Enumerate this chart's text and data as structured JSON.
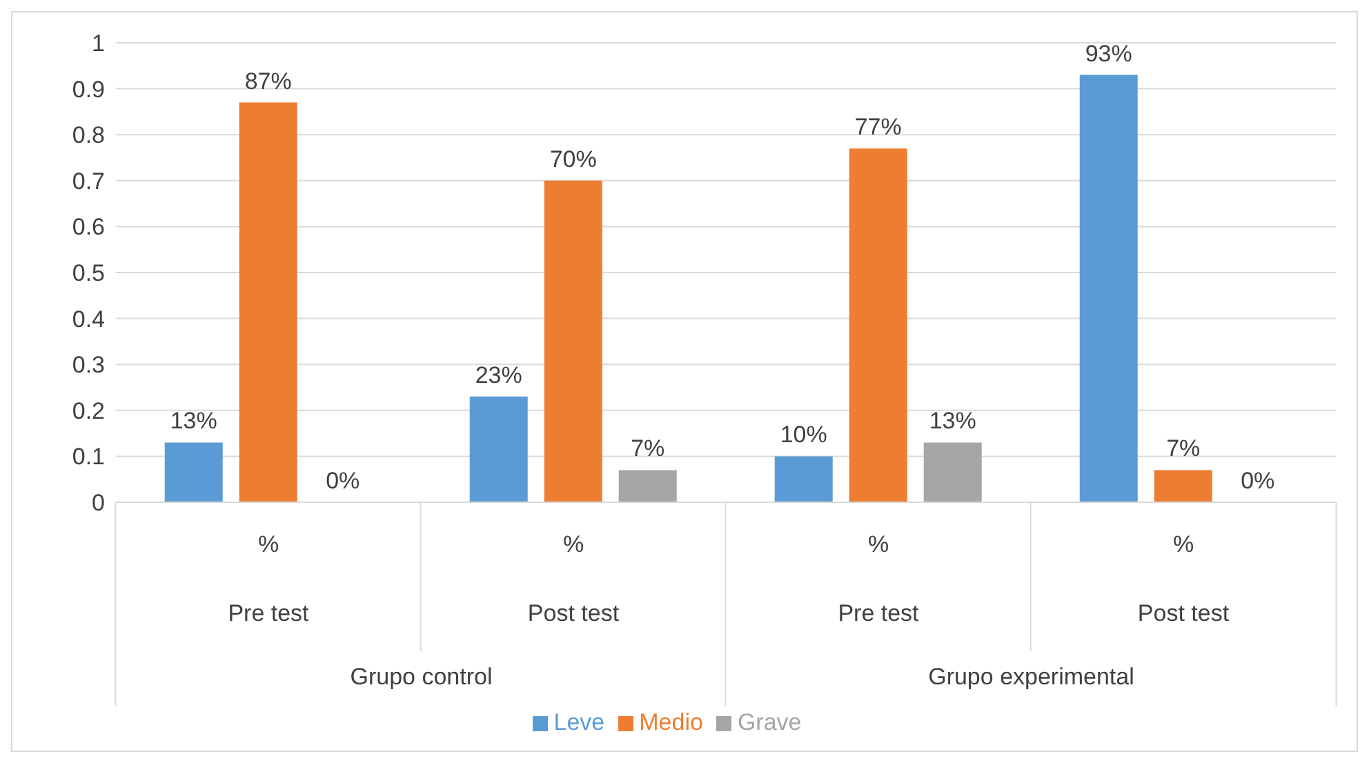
{
  "chart_data": {
    "type": "bar",
    "categories": [
      "%",
      "%",
      "%",
      "%"
    ],
    "series": [
      {
        "name": "Leve",
        "color": "#5b9bd5",
        "values": [
          0.13,
          0.23,
          0.1,
          0.93
        ],
        "value_labels": [
          "13%",
          "23%",
          "10%",
          "93%"
        ]
      },
      {
        "name": "Medio",
        "color": "#ed7d31",
        "values": [
          0.87,
          0.7,
          0.77,
          0.07
        ],
        "value_labels": [
          "87%",
          "70%",
          "77%",
          "7%"
        ]
      },
      {
        "name": "Grave",
        "color": "#a5a5a5",
        "values": [
          0,
          0.07,
          0.13,
          0
        ],
        "value_labels": [
          "0%",
          "7%",
          "13%",
          "0%"
        ]
      }
    ],
    "annotations": [
      "Pre test",
      "Post test",
      "Pre test",
      "Post test",
      "Grupo control",
      "Grupo experimental"
    ],
    "ylim": [
      0,
      1
    ],
    "yticks": [
      0,
      0.1,
      0.2,
      0.3,
      0.4,
      0.5,
      0.6,
      0.7,
      0.8,
      0.9,
      1
    ],
    "grid": "y",
    "legend": "bottom"
  }
}
